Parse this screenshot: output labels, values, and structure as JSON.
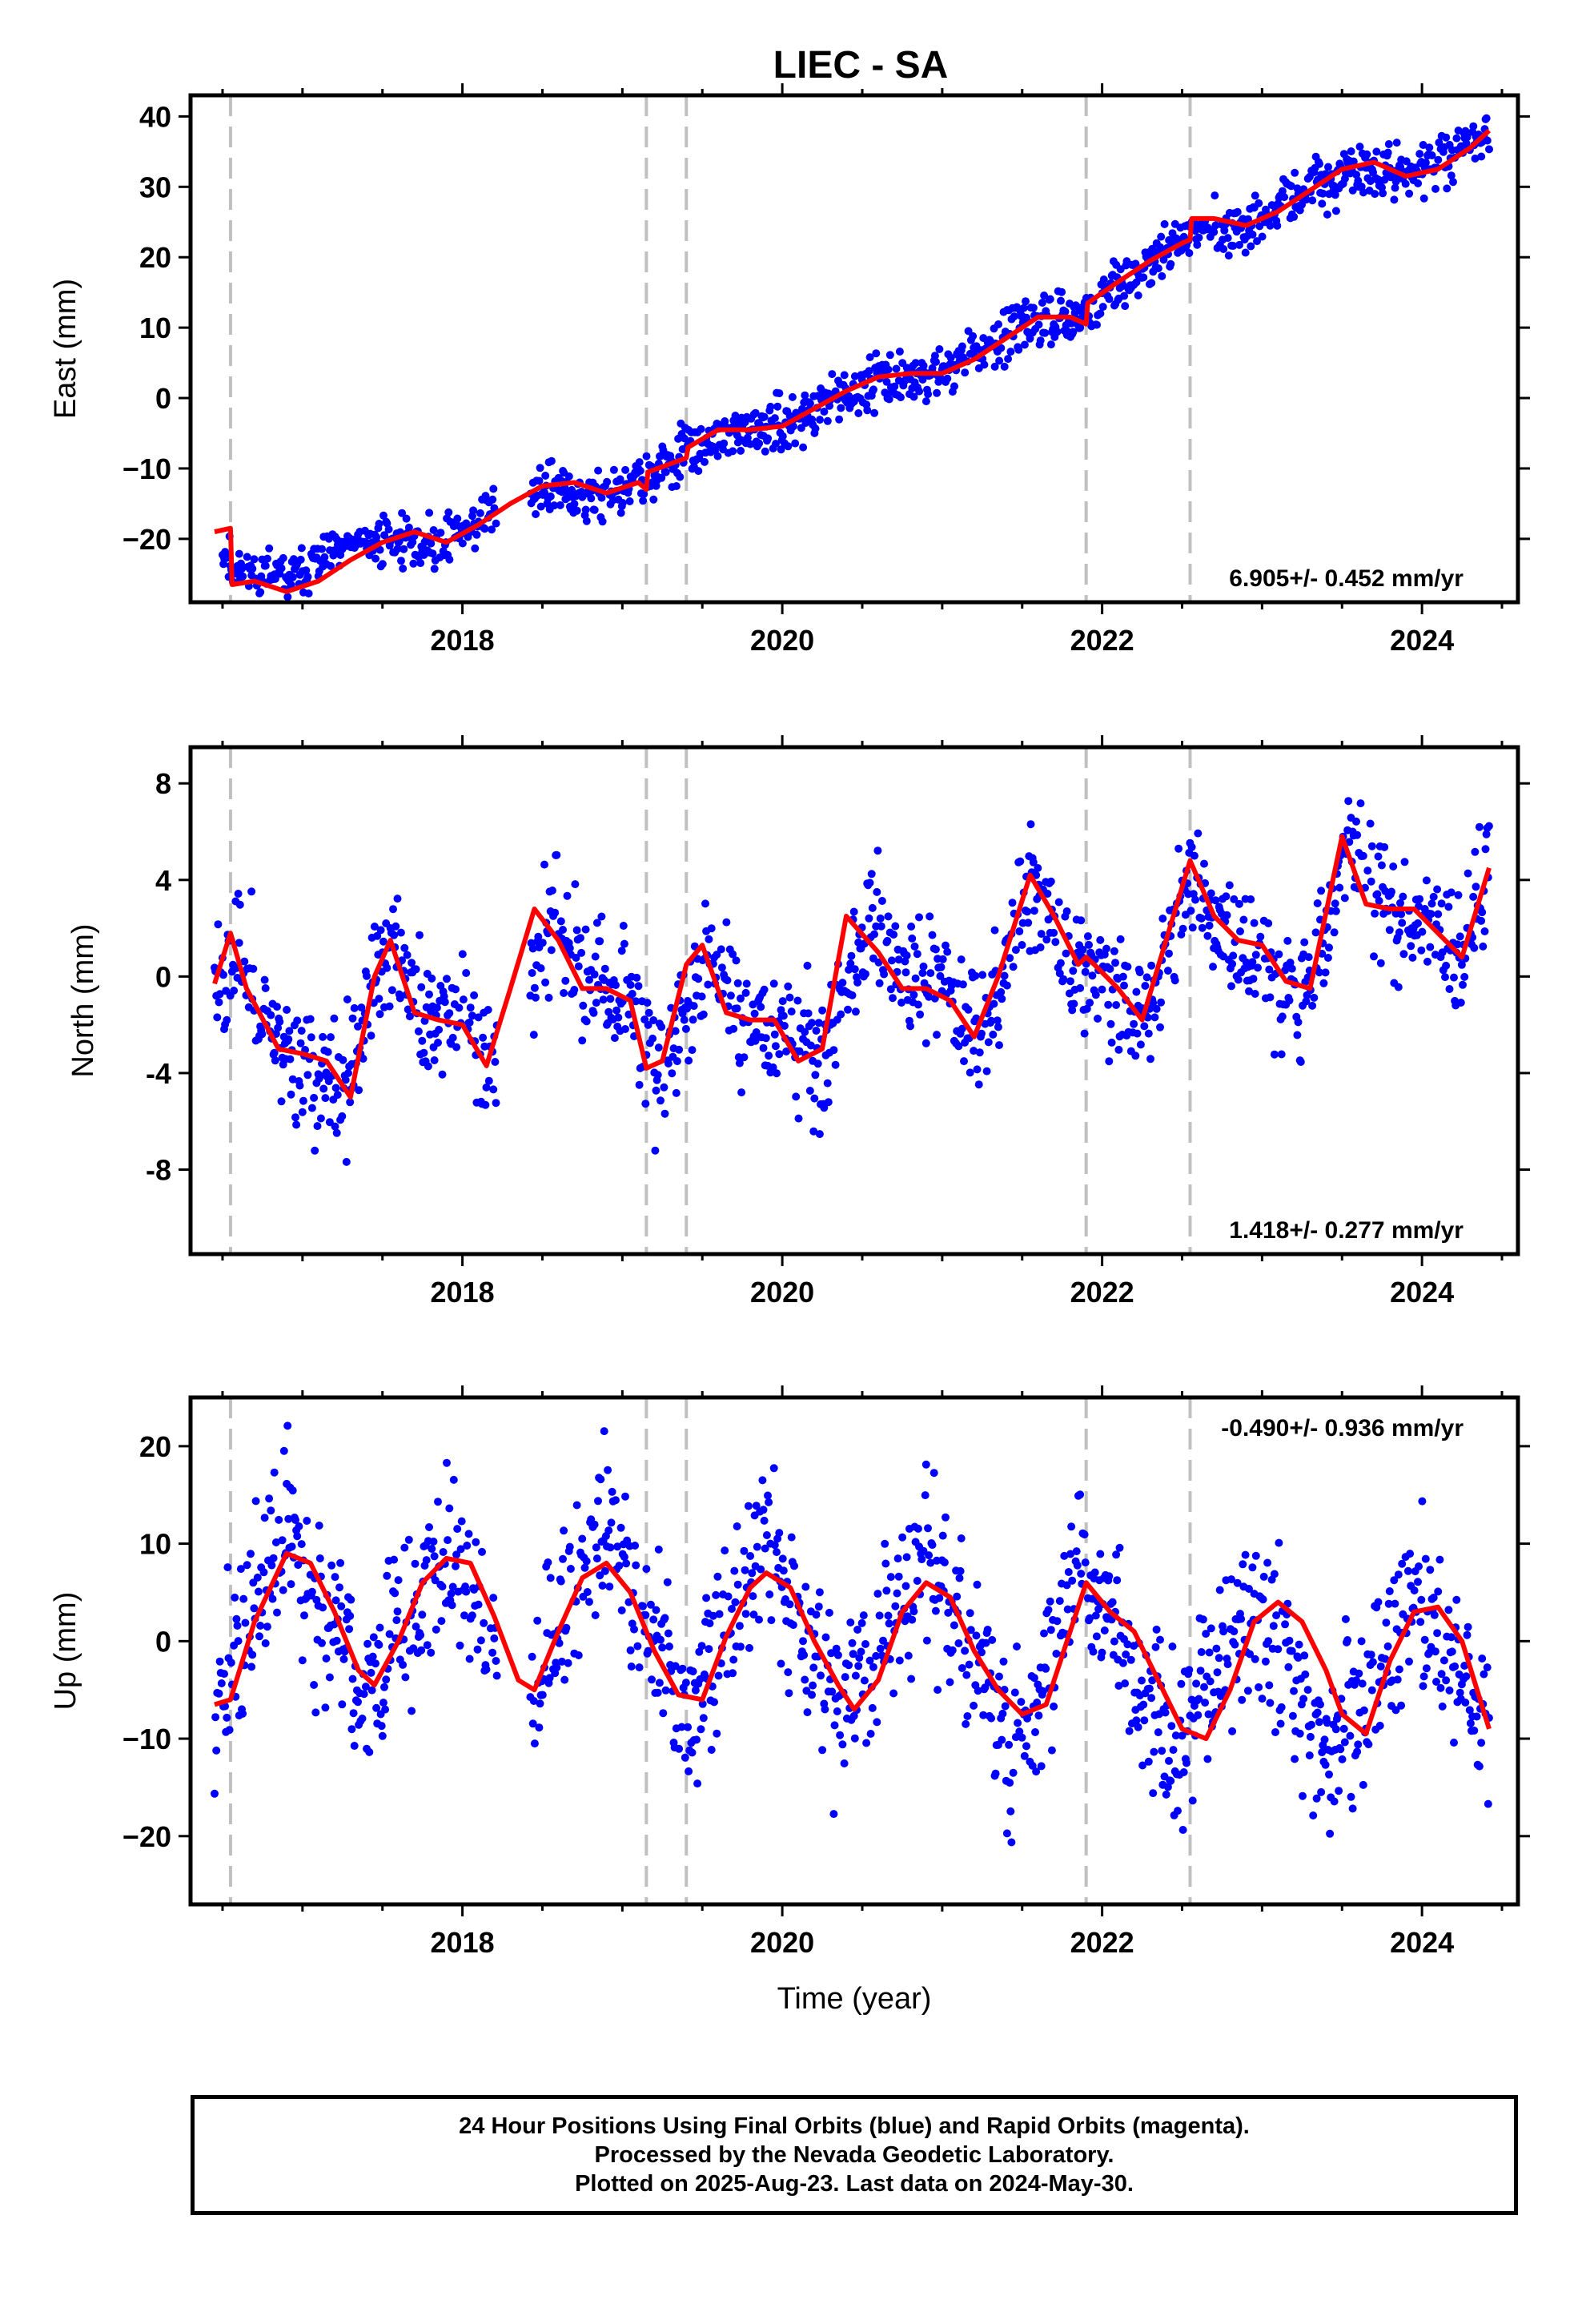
{
  "chart_data": [
    {
      "type": "scatter",
      "title": "LIEC - SA",
      "ylabel": "East (mm)",
      "xlabel": "",
      "xlim": [
        2016.3,
        2024.6
      ],
      "ylim": [
        -29,
        43
      ],
      "xticks": [
        2018,
        2020,
        2022,
        2024
      ],
      "yticks": [
        -20,
        -10,
        0,
        10,
        20,
        30,
        40
      ],
      "ytick_labels": [
        "−20",
        "−10",
        "0",
        "10",
        "20",
        "30",
        "40"
      ],
      "rate_label": "6.905+/- 0.452 mm/yr",
      "rate_position": "bottom-right",
      "equipment_changes": [
        2016.55,
        2019.15,
        2019.4,
        2021.9,
        2022.55
      ],
      "series": [
        {
          "role": "daily-positions",
          "color": "#0000ff",
          "model_x": [
            2016.5,
            2016.55,
            2016.9,
            2017.2,
            2017.5,
            2017.8,
            2018.1,
            2018.5,
            2018.8,
            2019.15,
            2019.4,
            2019.7,
            2020.0,
            2020.3,
            2020.6,
            2020.9,
            2021.2,
            2021.5,
            2021.8,
            2021.9,
            2022.2,
            2022.5,
            2022.55,
            2022.9,
            2023.2,
            2023.6,
            2023.9,
            2024.2,
            2024.42
          ],
          "model_y": [
            -20.5,
            -24,
            -26,
            -22,
            -20,
            -21,
            -17.5,
            -13,
            -14,
            -12,
            -7.5,
            -5,
            -4,
            -1,
            3,
            3,
            6,
            10,
            12,
            12,
            18,
            22,
            24,
            24.5,
            28,
            33,
            31.5,
            34.5,
            38
          ],
          "noise": 1.8
        },
        {
          "role": "model-fit",
          "color": "#ff0000",
          "x": [
            2016.45,
            2016.55,
            2016.56,
            2016.7,
            2016.9,
            2017.1,
            2017.3,
            2017.5,
            2017.7,
            2017.9,
            2018.1,
            2018.3,
            2018.5,
            2018.7,
            2018.9,
            2019.1,
            2019.15,
            2019.16,
            2019.4,
            2019.41,
            2019.6,
            2019.8,
            2020.0,
            2020.2,
            2020.4,
            2020.6,
            2020.8,
            2021.0,
            2021.2,
            2021.4,
            2021.6,
            2021.8,
            2021.9,
            2021.91,
            2022.1,
            2022.3,
            2022.5,
            2022.55,
            2022.56,
            2022.7,
            2022.9,
            2023.1,
            2023.3,
            2023.5,
            2023.7,
            2023.9,
            2024.1,
            2024.3,
            2024.42
          ],
          "y": [
            -19,
            -18.5,
            -26.5,
            -26,
            -27.5,
            -26,
            -23,
            -20.5,
            -19,
            -20.5,
            -18,
            -15,
            -12.5,
            -12,
            -13.5,
            -12,
            -13,
            -10.5,
            -8.5,
            -7,
            -4.5,
            -4.5,
            -4,
            -1.5,
            1,
            3,
            3.5,
            3.5,
            5.5,
            8.5,
            11.5,
            11.5,
            10.5,
            13.5,
            16.5,
            19.5,
            22,
            22.5,
            25.5,
            25.5,
            24.5,
            26.5,
            29.5,
            32.5,
            33.5,
            31.5,
            32.5,
            35.5,
            38
          ]
        }
      ]
    },
    {
      "type": "scatter",
      "title": "",
      "ylabel": "North (mm)",
      "xlabel": "",
      "xlim": [
        2016.3,
        2024.6
      ],
      "ylim": [
        -11.5,
        9.5
      ],
      "xticks": [
        2018,
        2020,
        2022,
        2024
      ],
      "yticks": [
        -8,
        -4,
        0,
        4,
        8
      ],
      "ytick_labels": [
        "-8",
        "-4",
        "0",
        "4",
        "8"
      ],
      "rate_label": "1.418+/- 0.277 mm/yr",
      "rate_position": "bottom-right",
      "equipment_changes": [
        2016.55,
        2019.15,
        2019.4,
        2021.9,
        2022.55
      ],
      "series": [
        {
          "role": "daily-positions",
          "color": "#0000ff",
          "model_x": [
            2016.45,
            2016.6,
            2016.8,
            2017.0,
            2017.25,
            2017.45,
            2017.6,
            2017.75,
            2017.95,
            2018.25,
            2018.55,
            2018.75,
            2019.0,
            2019.25,
            2019.55,
            2019.75,
            2020.0,
            2020.25,
            2020.55,
            2020.8,
            2021.0,
            2021.25,
            2021.55,
            2021.8,
            2022.0,
            2022.25,
            2022.55,
            2022.75,
            2023.0,
            2023.25,
            2023.55,
            2023.8,
            2024.0,
            2024.25,
            2024.42
          ],
          "model_y": [
            0,
            1,
            -2,
            -3.5,
            -5,
            0,
            1,
            -2,
            -1.5,
            -3.5,
            2.5,
            0,
            -0.5,
            -4,
            1,
            -1.5,
            -2,
            -3.5,
            2.5,
            -0.5,
            -0.5,
            -2.5,
            4,
            0.5,
            0,
            -2,
            4.5,
            1.5,
            1,
            -1,
            5.5,
            2.5,
            2.5,
            1,
            4
          ],
          "noise": 1.3
        },
        {
          "role": "model-fit",
          "color": "#ff0000",
          "x": [
            2016.45,
            2016.55,
            2016.65,
            2016.85,
            2017.0,
            2017.15,
            2017.3,
            2017.45,
            2017.55,
            2017.7,
            2017.85,
            2018.0,
            2018.15,
            2018.3,
            2018.45,
            2018.6,
            2018.75,
            2018.9,
            2019.05,
            2019.15,
            2019.25,
            2019.4,
            2019.5,
            2019.65,
            2019.8,
            2019.95,
            2020.1,
            2020.25,
            2020.4,
            2020.6,
            2020.75,
            2020.9,
            2021.05,
            2021.2,
            2021.35,
            2021.55,
            2021.7,
            2021.85,
            2021.9,
            2021.95,
            2022.1,
            2022.25,
            2022.4,
            2022.55,
            2022.7,
            2022.85,
            2023.0,
            2023.15,
            2023.3,
            2023.5,
            2023.65,
            2023.8,
            2023.95,
            2024.1,
            2024.25,
            2024.42
          ],
          "y": [
            -0.3,
            1.8,
            -0.5,
            -3,
            -3.2,
            -3.5,
            -5,
            0,
            1.5,
            -1.5,
            -1.8,
            -2,
            -3.7,
            -0.5,
            2.8,
            1.5,
            -0.5,
            -0.5,
            -1,
            -3.8,
            -3.5,
            0.5,
            1.3,
            -1.5,
            -1.8,
            -1.8,
            -3.5,
            -3,
            2.5,
            1,
            -0.5,
            -0.5,
            -1,
            -2.5,
            0,
            4.2,
            2.5,
            0.5,
            0.8,
            0.5,
            -0.5,
            -1.8,
            1.5,
            4.8,
            2.5,
            1.5,
            1.3,
            -0.2,
            -0.5,
            5.8,
            3,
            2.8,
            2.8,
            1.8,
            0.8,
            4.5
          ]
        }
      ]
    },
    {
      "type": "scatter",
      "title": "",
      "ylabel": "Up (mm)",
      "xlabel": "Time (year)",
      "xlim": [
        2016.3,
        2024.6
      ],
      "ylim": [
        -27,
        25
      ],
      "xticks": [
        2018,
        2020,
        2022,
        2024
      ],
      "yticks": [
        -20,
        -10,
        0,
        10,
        20
      ],
      "ytick_labels": [
        "−20",
        "−10",
        "0",
        "10",
        "20"
      ],
      "rate_label": "-0.490+/- 0.936 mm/yr",
      "rate_position": "top-right",
      "equipment_changes": [
        2016.55,
        2019.15,
        2019.4,
        2021.9,
        2022.55
      ],
      "series": [
        {
          "role": "daily-positions",
          "color": "#0000ff",
          "model_x": [
            2016.45,
            2016.9,
            2017.4,
            2017.9,
            2018.4,
            2018.9,
            2019.4,
            2019.9,
            2020.4,
            2020.9,
            2021.45,
            2021.85,
            2022.45,
            2022.95,
            2023.45,
            2023.95,
            2024.42
          ],
          "model_y": [
            -7,
            11,
            -6,
            10,
            -6,
            12,
            -7,
            10,
            -7,
            9,
            -11,
            7,
            -11,
            4,
            -12,
            5,
            -9
          ],
          "noise": 4.5
        },
        {
          "role": "model-fit",
          "color": "#ff0000",
          "x": [
            2016.45,
            2016.55,
            2016.7,
            2016.9,
            2017.05,
            2017.2,
            2017.35,
            2017.45,
            2017.6,
            2017.75,
            2017.9,
            2018.05,
            2018.2,
            2018.35,
            2018.45,
            2018.6,
            2018.75,
            2018.9,
            2019.05,
            2019.2,
            2019.35,
            2019.5,
            2019.65,
            2019.8,
            2019.9,
            2020.05,
            2020.2,
            2020.35,
            2020.45,
            2020.6,
            2020.75,
            2020.9,
            2021.05,
            2021.2,
            2021.35,
            2021.5,
            2021.65,
            2021.8,
            2021.9,
            2022.05,
            2022.2,
            2022.35,
            2022.5,
            2022.65,
            2022.8,
            2022.95,
            2023.1,
            2023.25,
            2023.4,
            2023.5,
            2023.65,
            2023.8,
            2023.95,
            2024.1,
            2024.25,
            2024.42
          ],
          "y": [
            -6.5,
            -6,
            2,
            9,
            8,
            3,
            -3,
            -4.5,
            0,
            6,
            8.5,
            8,
            2.5,
            -4,
            -5,
            1,
            6.5,
            8,
            5,
            -1,
            -5.5,
            -6,
            0.5,
            5.5,
            7,
            5.5,
            0,
            -4.5,
            -7,
            -4,
            3,
            6,
            4.5,
            -1,
            -5,
            -7.5,
            -6.5,
            1,
            6,
            3,
            1,
            -4,
            -9,
            -10,
            -5,
            2,
            4,
            2,
            -3,
            -7.5,
            -9.5,
            -2,
            3,
            3.5,
            0,
            -9
          ]
        }
      ]
    }
  ],
  "footer": {
    "line1": "24 Hour Positions Using Final Orbits (blue) and Rapid Orbits (magenta).",
    "line2": "Processed by the Nevada Geodetic Laboratory.",
    "line3": "Plotted on 2025-Aug-23. Last data on 2024-May-30."
  }
}
